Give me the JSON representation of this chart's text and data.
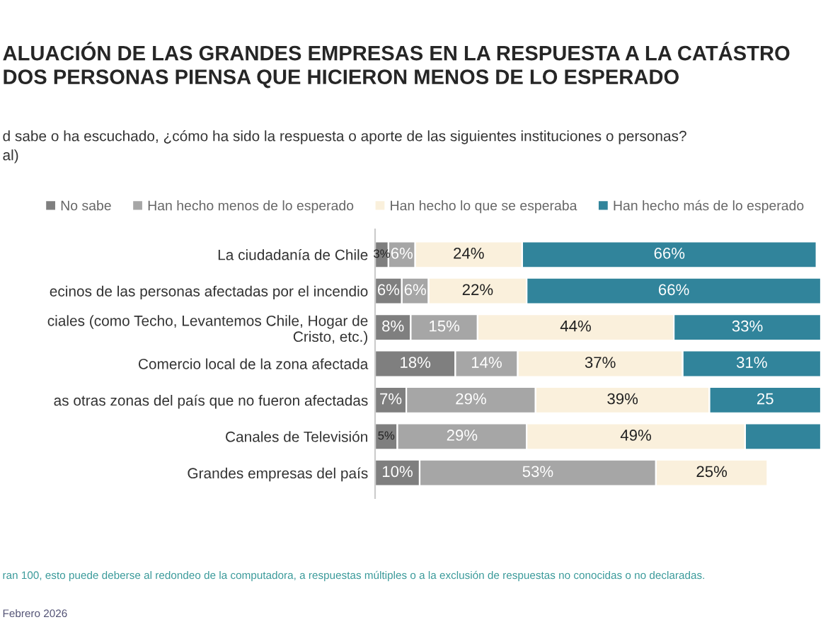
{
  "chart_data": {
    "type": "bar",
    "orientation": "horizontal",
    "stacked": true,
    "title": "ALUACIÓN DE LAS GRANDES EMPRESAS EN LA RESPUESTA A LA CATÁSTRO\nDOS PERSONAS PIENSA QUE HICIERON MENOS DE LO ESPERADO",
    "subtitle": "d sabe o ha escuchado, ¿cómo ha sido la respuesta o aporte de las siguientes instituciones o personas?\nal)",
    "categories": [
      "La ciudadanía de Chile",
      "ecinos de las personas afectadas por el incendio",
      "ciales (como Techo, Levantemos Chile, Hogar de\nCristo, etc.)",
      "Comercio local de la zona afectada",
      "as otras zonas del país que no fueron afectadas",
      "Canales de Televisión",
      "Grandes empresas del país"
    ],
    "series": [
      {
        "name": "No sabe",
        "color": "#7f7f7f",
        "values": [
          3,
          6,
          8,
          18,
          7,
          5,
          10
        ],
        "value_labels": [
          "3%",
          "6%",
          "8%",
          "18%",
          "7%",
          "5%",
          "10%"
        ]
      },
      {
        "name": "Han hecho menos de lo esperado",
        "color": "#a6a6a6",
        "values": [
          6,
          6,
          15,
          14,
          29,
          29,
          53
        ],
        "value_labels": [
          "6%",
          "6%",
          "15%",
          "14%",
          "29%",
          "29%",
          "53%"
        ]
      },
      {
        "name": "Han hecho lo que se esperaba",
        "color": "#faf0dc",
        "values": [
          24,
          22,
          44,
          37,
          39,
          49,
          25
        ],
        "value_labels": [
          "24%",
          "22%",
          "44%",
          "37%",
          "39%",
          "49%",
          "25%"
        ]
      },
      {
        "name": "Han hecho más de lo esperado",
        "color": "#31849b",
        "values": [
          66,
          66,
          33,
          31,
          25,
          17,
          null
        ],
        "value_labels": [
          "66%",
          "66%",
          "33%",
          "31%",
          "25",
          null,
          null
        ]
      }
    ],
    "legend": "top",
    "annotations": [
      "ran 100, esto puede deberse al redondeo de la computadora, a respuestas múltiples o a la exclusión de respuestas no conocidas o no declaradas.",
      "Febrero 2026"
    ]
  }
}
